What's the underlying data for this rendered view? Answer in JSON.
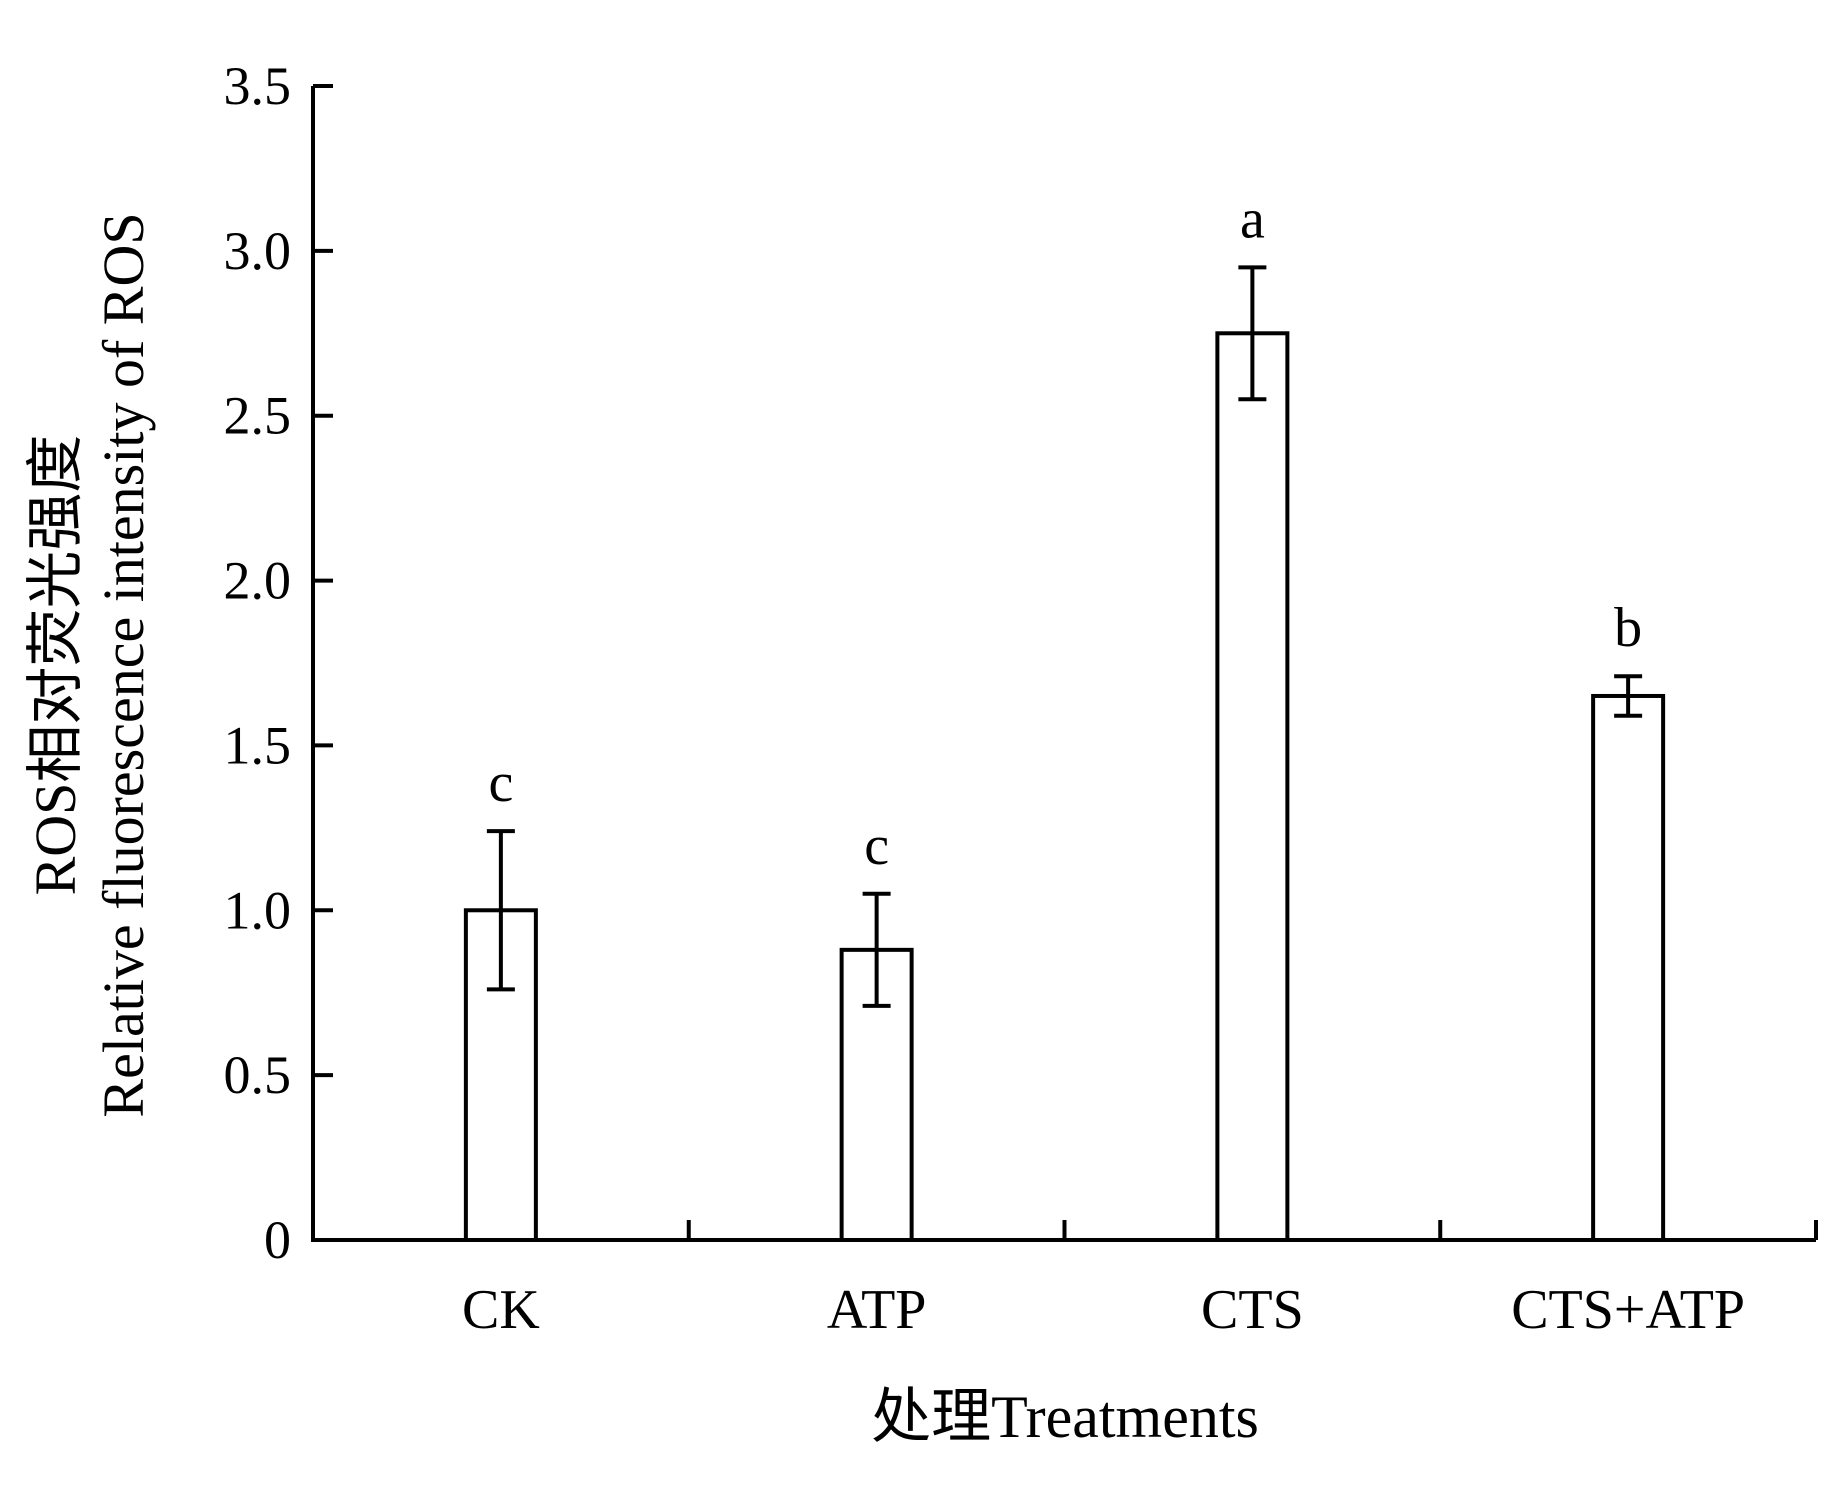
{
  "chart_data": {
    "type": "bar",
    "title": "",
    "xlabel": "处理Treatments",
    "ylabel_line1": "ROS相对荧光强度",
    "ylabel_line2": "Relative fluorescence intensity of ROS",
    "categories": [
      "CK",
      "ATP",
      "CTS",
      "CTS+ATP"
    ],
    "values": [
      1.0,
      0.88,
      2.75,
      1.65
    ],
    "errors": [
      0.24,
      0.17,
      0.2,
      0.06
    ],
    "significance": [
      "c",
      "c",
      "a",
      "b"
    ],
    "ylim": [
      0,
      3.5
    ],
    "yticks": [
      0,
      0.5,
      1.0,
      1.5,
      2.0,
      2.5,
      3.0,
      3.5
    ],
    "ytick_labels": [
      "0",
      "0.5",
      "1.0",
      "1.5",
      "2.0",
      "2.5",
      "3.0",
      "3.5"
    ],
    "grid": false,
    "legend": "none",
    "bar_fill": "#ffffff",
    "bar_stroke": "#000000"
  }
}
